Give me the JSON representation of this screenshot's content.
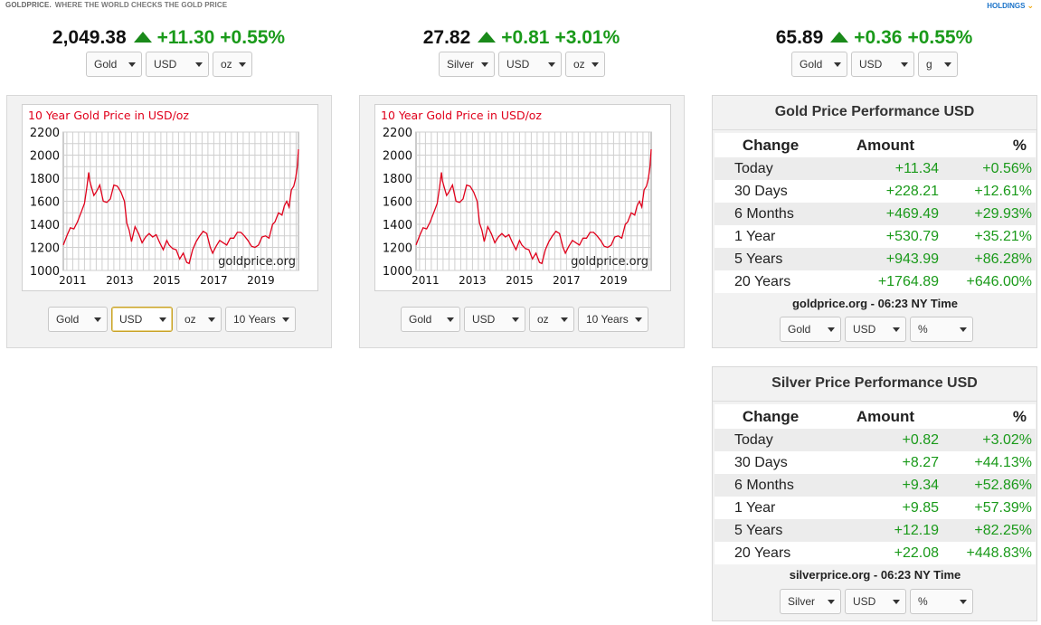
{
  "header": {
    "brand_name": "GOLDPRICE.",
    "tagline": "WHERE THE WORLD CHECKS THE GOLD PRICE",
    "holdings_label": "HOLDINGS"
  },
  "tickers": [
    {
      "price": "2,049.38",
      "change": "+11.30",
      "percent": "+0.55%",
      "selects": [
        "Gold",
        "USD",
        "oz"
      ]
    },
    {
      "price": "27.82",
      "change": "+0.81",
      "percent": "+3.01%",
      "selects": [
        "Silver",
        "USD",
        "oz"
      ]
    },
    {
      "price": "65.89",
      "change": "+0.36",
      "percent": "+0.55%",
      "selects": [
        "Gold",
        "USD",
        "g"
      ]
    }
  ],
  "chart_panels": [
    {
      "selects": [
        "Gold",
        "USD",
        "oz",
        "10 Years"
      ]
    },
    {
      "selects": [
        "Gold",
        "USD",
        "oz",
        "10 Years"
      ]
    }
  ],
  "chart_data": [
    {
      "type": "line",
      "title": "10 Year Gold Price in USD/oz",
      "watermark": "goldprice.org",
      "ylim": [
        1000,
        2200
      ],
      "yticks": [
        1000,
        1200,
        1400,
        1600,
        1800,
        2000,
        2200
      ],
      "xlim": [
        2010.6,
        2020.6
      ],
      "xticks": [
        "2011",
        "2013",
        "2015",
        "2017",
        "2019"
      ],
      "xtick_values": [
        2011,
        2013,
        2015,
        2017,
        2019
      ],
      "grid": true,
      "line_color": "#e0001b",
      "series": [
        {
          "x": [
            2010.6,
            2010.75,
            2010.9,
            2011.05,
            2011.2,
            2011.35,
            2011.5,
            2011.6,
            2011.68,
            2011.72,
            2011.8,
            2011.9,
            2012.0,
            2012.15,
            2012.3,
            2012.45,
            2012.6,
            2012.75,
            2012.9,
            2013.05,
            2013.2,
            2013.3,
            2013.4,
            2013.5,
            2013.65,
            2013.8,
            2013.95,
            2014.1,
            2014.25,
            2014.4,
            2014.55,
            2014.7,
            2014.85,
            2015.0,
            2015.1,
            2015.25,
            2015.4,
            2015.55,
            2015.7,
            2015.85,
            2015.95,
            2016.1,
            2016.25,
            2016.4,
            2016.55,
            2016.7,
            2016.85,
            2016.95,
            2017.1,
            2017.25,
            2017.4,
            2017.55,
            2017.7,
            2017.85,
            2018.0,
            2018.15,
            2018.3,
            2018.45,
            2018.6,
            2018.75,
            2018.9,
            2019.05,
            2019.2,
            2019.35,
            2019.5,
            2019.6,
            2019.75,
            2019.9,
            2020.0,
            2020.1,
            2020.2,
            2020.3,
            2020.4,
            2020.48,
            2020.55,
            2020.6
          ],
          "y": [
            1220,
            1300,
            1370,
            1360,
            1420,
            1500,
            1580,
            1720,
            1850,
            1780,
            1720,
            1650,
            1680,
            1740,
            1600,
            1590,
            1620,
            1740,
            1730,
            1680,
            1600,
            1410,
            1350,
            1250,
            1380,
            1320,
            1240,
            1290,
            1320,
            1290,
            1310,
            1240,
            1180,
            1260,
            1220,
            1190,
            1180,
            1100,
            1150,
            1070,
            1060,
            1180,
            1250,
            1300,
            1340,
            1320,
            1200,
            1150,
            1210,
            1260,
            1240,
            1220,
            1280,
            1280,
            1330,
            1330,
            1300,
            1260,
            1210,
            1200,
            1220,
            1290,
            1300,
            1280,
            1400,
            1420,
            1500,
            1480,
            1560,
            1600,
            1550,
            1700,
            1730,
            1800,
            1900,
            2050
          ]
        }
      ]
    },
    {
      "type": "line",
      "title": "10 Year Gold Price in USD/oz",
      "watermark": "goldprice.org",
      "ylim": [
        1000,
        2200
      ],
      "yticks": [
        1000,
        1200,
        1400,
        1600,
        1800,
        2000,
        2200
      ],
      "xlim": [
        2010.6,
        2020.6
      ],
      "xticks": [
        "2011",
        "2013",
        "2015",
        "2017",
        "2019"
      ],
      "xtick_values": [
        2011,
        2013,
        2015,
        2017,
        2019
      ],
      "grid": true,
      "line_color": "#e0001b",
      "series": [
        {
          "x": [
            2010.6,
            2010.75,
            2010.9,
            2011.05,
            2011.2,
            2011.35,
            2011.5,
            2011.6,
            2011.68,
            2011.72,
            2011.8,
            2011.9,
            2012.0,
            2012.15,
            2012.3,
            2012.45,
            2012.6,
            2012.75,
            2012.9,
            2013.05,
            2013.2,
            2013.3,
            2013.4,
            2013.5,
            2013.65,
            2013.8,
            2013.95,
            2014.1,
            2014.25,
            2014.4,
            2014.55,
            2014.7,
            2014.85,
            2015.0,
            2015.1,
            2015.25,
            2015.4,
            2015.55,
            2015.7,
            2015.85,
            2015.95,
            2016.1,
            2016.25,
            2016.4,
            2016.55,
            2016.7,
            2016.85,
            2016.95,
            2017.1,
            2017.25,
            2017.4,
            2017.55,
            2017.7,
            2017.85,
            2018.0,
            2018.15,
            2018.3,
            2018.45,
            2018.6,
            2018.75,
            2018.9,
            2019.05,
            2019.2,
            2019.35,
            2019.5,
            2019.6,
            2019.75,
            2019.9,
            2020.0,
            2020.1,
            2020.2,
            2020.3,
            2020.4,
            2020.48,
            2020.55,
            2020.6
          ],
          "y": [
            1220,
            1300,
            1370,
            1360,
            1420,
            1500,
            1580,
            1720,
            1850,
            1780,
            1720,
            1650,
            1680,
            1740,
            1600,
            1590,
            1620,
            1740,
            1730,
            1680,
            1600,
            1410,
            1350,
            1250,
            1380,
            1320,
            1240,
            1290,
            1320,
            1290,
            1310,
            1240,
            1180,
            1260,
            1220,
            1190,
            1180,
            1100,
            1150,
            1070,
            1060,
            1180,
            1250,
            1300,
            1340,
            1320,
            1200,
            1150,
            1210,
            1260,
            1240,
            1220,
            1280,
            1280,
            1330,
            1330,
            1300,
            1260,
            1210,
            1200,
            1220,
            1290,
            1300,
            1280,
            1400,
            1420,
            1500,
            1480,
            1560,
            1600,
            1550,
            1700,
            1730,
            1800,
            1900,
            2050
          ]
        }
      ]
    }
  ],
  "perf_tables": [
    {
      "title": "Gold Price Performance USD",
      "headers": [
        "Change",
        "Amount",
        "%"
      ],
      "rows": [
        {
          "period": "Today",
          "amount": "+11.34",
          "pct": "+0.56%"
        },
        {
          "period": "30 Days",
          "amount": "+228.21",
          "pct": "+12.61%"
        },
        {
          "period": "6 Months",
          "amount": "+469.49",
          "pct": "+29.93%"
        },
        {
          "period": "1 Year",
          "amount": "+530.79",
          "pct": "+35.21%"
        },
        {
          "period": "5 Years",
          "amount": "+943.99",
          "pct": "+86.28%"
        },
        {
          "period": "20 Years",
          "amount": "+1764.89",
          "pct": "+646.00%"
        }
      ],
      "footer": "goldprice.org - 06:23 NY Time",
      "selects": [
        "Gold",
        "USD",
        "%"
      ]
    },
    {
      "title": "Silver Price Performance USD",
      "headers": [
        "Change",
        "Amount",
        "%"
      ],
      "rows": [
        {
          "period": "Today",
          "amount": "+0.82",
          "pct": "+3.02%"
        },
        {
          "period": "30 Days",
          "amount": "+8.27",
          "pct": "+44.13%"
        },
        {
          "period": "6 Months",
          "amount": "+9.34",
          "pct": "+52.86%"
        },
        {
          "period": "1 Year",
          "amount": "+9.85",
          "pct": "+57.39%"
        },
        {
          "period": "5 Years",
          "amount": "+12.19",
          "pct": "+82.25%"
        },
        {
          "period": "20 Years",
          "amount": "+22.08",
          "pct": "+448.83%"
        }
      ],
      "footer": "silverprice.org - 06:23 NY Time",
      "selects": [
        "Silver",
        "USD",
        "%"
      ]
    }
  ]
}
